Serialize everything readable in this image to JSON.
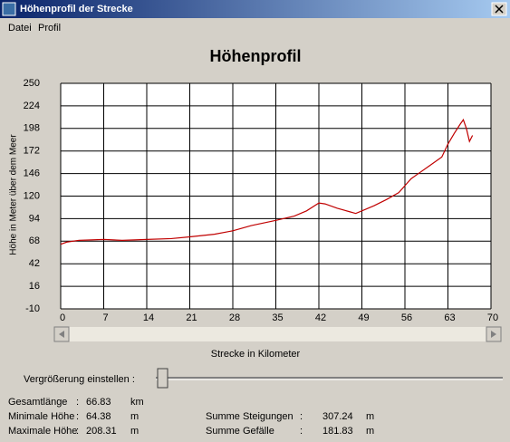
{
  "window": {
    "title": "Höhenprofil der Strecke"
  },
  "menu": [
    "Datei",
    "Profil"
  ],
  "chart_data": {
    "type": "line",
    "title": "Höhenprofil",
    "x_label": "Strecke in Kilometer",
    "y_label": "Höhe in Meter über dem Meer",
    "xlim": [
      0,
      70
    ],
    "ylim": [
      -10,
      250
    ],
    "xticks": [
      0,
      7,
      14,
      21,
      28,
      35,
      42,
      49,
      56,
      63,
      70
    ],
    "yticks": [
      -10,
      16,
      42,
      68,
      94,
      120,
      146,
      172,
      198,
      224,
      250
    ],
    "grid": true,
    "x": [
      0,
      1,
      3,
      5,
      7,
      10,
      14,
      18,
      21,
      25,
      28,
      31,
      35,
      38,
      40,
      42,
      43,
      45,
      47,
      48,
      49,
      51,
      53,
      55,
      56,
      57,
      58,
      60,
      62,
      63,
      64,
      65,
      65.5,
      66,
      66.5,
      67
    ],
    "series": [
      {
        "name": "Höhe",
        "color": "#c00000",
        "values": [
          64.4,
          67,
          69,
          69.5,
          70,
          69,
          70,
          71,
          73,
          76,
          80,
          86,
          92,
          97,
          103,
          112,
          111,
          106,
          102,
          100,
          103,
          109,
          116,
          124,
          132,
          140,
          145,
          155,
          165,
          180,
          192,
          203,
          208,
          198,
          183,
          190
        ]
      }
    ]
  },
  "zoom_label": "Vergrößerung einstellen :",
  "separator": ":",
  "stats_left": [
    {
      "label": "Gesamtlänge",
      "value": "66.83",
      "unit": "km"
    },
    {
      "label": "Minimale Höhe",
      "value": "64.38",
      "unit": "m"
    },
    {
      "label": "Maximale Höhe",
      "value": "208.31",
      "unit": "m"
    }
  ],
  "stats_right": [
    {
      "label": "Summe Steigungen",
      "value": "307.24",
      "unit": "m"
    },
    {
      "label": "Summe Gefälle",
      "value": "181.83",
      "unit": "m"
    }
  ]
}
